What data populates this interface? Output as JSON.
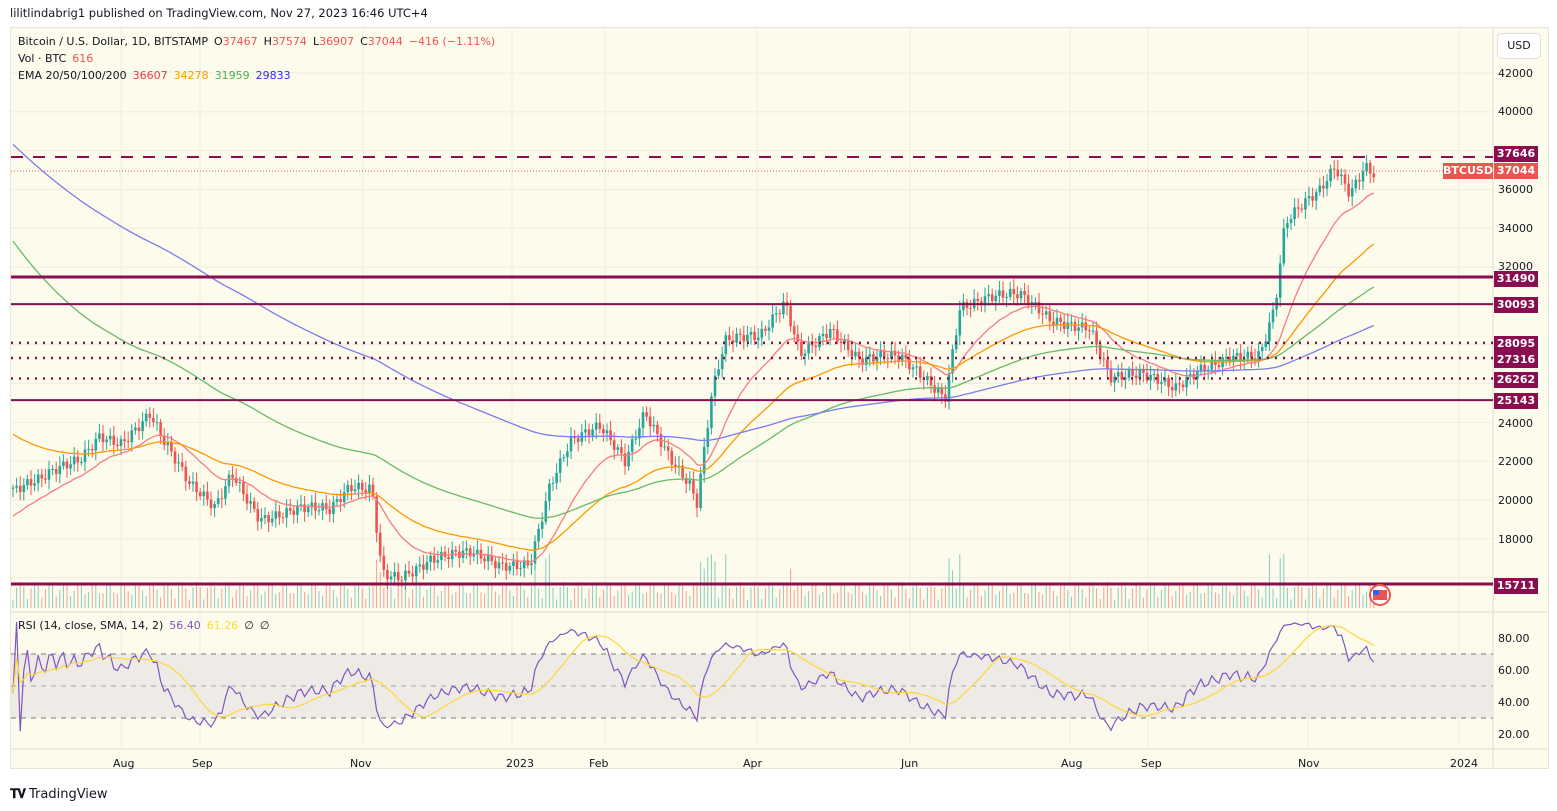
{
  "header": {
    "published_line": "lilitlindabrig1 published on TradingView.com, Nov 27, 2023 16:46 UTC+4"
  },
  "legend": {
    "symbol": "Bitcoin / U.S. Dollar, 1D, BITSTAMP",
    "open_label": "O",
    "open": "37467",
    "high_label": "H",
    "high": "37574",
    "low_label": "L",
    "low": "36907",
    "close_label": "C",
    "close": "37044",
    "change": "−416 (−1.11%)",
    "volume_label": "Vol · BTC",
    "volume": "616",
    "ema_label": "EMA 20/50/100/200",
    "ema20": "36607",
    "ema50": "34278",
    "ema100": "31959",
    "ema200": "29833",
    "rsi_label": "RSI (14, close, SMA, 14, 2)",
    "rsi_value": "56.40",
    "rsi_sma": "61.26",
    "rsi_extra1": "∅",
    "rsi_extra2": "∅"
  },
  "price_axis": {
    "currency_button": "USD",
    "ticks": [
      "42000",
      "40000",
      "36000",
      "34000",
      "32000",
      "24000",
      "22000",
      "20000",
      "18000"
    ],
    "tags": {
      "level_37646": "37646",
      "symbol_tag": "BTCUSD",
      "last_price": "37044",
      "level_31490": "31490",
      "level_30093": "30093",
      "level_28095": "28095",
      "level_27316": "27316",
      "level_26262": "26262",
      "level_25143": "25143",
      "level_15711": "15711"
    }
  },
  "rsi_axis": {
    "ticks": [
      "80.00",
      "60.00",
      "40.00",
      "20.00"
    ]
  },
  "time_axis": {
    "labels": [
      "Aug",
      "Sep",
      "Nov",
      "2023",
      "Feb",
      "Apr",
      "Jun",
      "Aug",
      "Sep",
      "Nov",
      "2024"
    ]
  },
  "footer": {
    "brand": "TradingView"
  },
  "colors": {
    "background": "#fdfbec",
    "level_line": "#880e4f",
    "last_price": "#ef5350",
    "up": "#26a69a",
    "down": "#ef5350",
    "ema20": "#f77c80",
    "ema50": "#ff9800",
    "ema100": "#66bb6a",
    "ema200": "#7b7bf0",
    "rsi": "#7e57c2",
    "rsi_sma": "#fdd835"
  },
  "chart_data": [
    {
      "type": "candlestick",
      "title": "Bitcoin / U.S. Dollar, 1D, BITSTAMP",
      "x_range": [
        "Jul 2022",
        "Nov 27, 2023"
      ],
      "ylim": [
        15000,
        43000
      ],
      "ylabel": "USD",
      "last_bar": {
        "open": 37467,
        "high": 37574,
        "low": 36907,
        "close": 37044,
        "change": -416,
        "change_pct": -1.11
      },
      "horizontal_levels": [
        {
          "value": 37646,
          "style": "dashed"
        },
        {
          "value": 31490,
          "style": "solid"
        },
        {
          "value": 30093,
          "style": "solid"
        },
        {
          "value": 28095,
          "style": "dotted"
        },
        {
          "value": 27316,
          "style": "dotted"
        },
        {
          "value": 26262,
          "style": "dotted"
        },
        {
          "value": 25143,
          "style": "solid"
        },
        {
          "value": 15711,
          "style": "solid"
        }
      ],
      "approx_close_path": [
        {
          "x": "Jul 2022",
          "y": 20500
        },
        {
          "x": "Aug 2022",
          "y": 23500
        },
        {
          "x": "mid Aug 2022",
          "y": 24500
        },
        {
          "x": "Sep 2022",
          "y": 20000
        },
        {
          "x": "Oct 2022",
          "y": 19500
        },
        {
          "x": "early Nov 2022",
          "y": 21000
        },
        {
          "x": "mid Nov 2022",
          "y": 16500
        },
        {
          "x": "Dec 2022",
          "y": 17000
        },
        {
          "x": "Jan 2023",
          "y": 16600
        },
        {
          "x": "late Jan 2023",
          "y": 23000
        },
        {
          "x": "Feb 2023",
          "y": 23500
        },
        {
          "x": "mid Feb 2023",
          "y": 24800
        },
        {
          "x": "Mar 10 2023",
          "y": 20000
        },
        {
          "x": "late Mar 2023",
          "y": 28000
        },
        {
          "x": "mid Apr 2023",
          "y": 30500
        },
        {
          "x": "May 2023",
          "y": 27000
        },
        {
          "x": "mid Jun 2023",
          "y": 25000
        },
        {
          "x": "late Jun 2023",
          "y": 30500
        },
        {
          "x": "Jul 2023",
          "y": 30200
        },
        {
          "x": "early Aug 2023",
          "y": 29200
        },
        {
          "x": "late Aug 2023",
          "y": 26000
        },
        {
          "x": "mid Sep 2023",
          "y": 26500
        },
        {
          "x": "Oct 2023",
          "y": 27500
        },
        {
          "x": "late Oct 2023",
          "y": 34500
        },
        {
          "x": "mid Nov 2023",
          "y": 37000
        },
        {
          "x": "Nov 27 2023",
          "y": 37044
        }
      ],
      "series": [
        {
          "name": "EMA 20",
          "last": 36607
        },
        {
          "name": "EMA 50",
          "last": 34278
        },
        {
          "name": "EMA 100",
          "last": 31959
        },
        {
          "name": "EMA 200",
          "last": 29833
        }
      ],
      "volume": {
        "unit": "BTC",
        "last": 616
      }
    },
    {
      "type": "line",
      "title": "RSI (14, close, SMA, 14, 2)",
      "ylim": [
        15,
        95
      ],
      "bands": {
        "upper": 70,
        "middle": 50,
        "lower": 30
      },
      "series": [
        {
          "name": "RSI",
          "last": 56.4
        },
        {
          "name": "RSI SMA",
          "last": 61.26
        }
      ],
      "yticks": [
        80,
        60,
        40,
        20
      ]
    }
  ]
}
